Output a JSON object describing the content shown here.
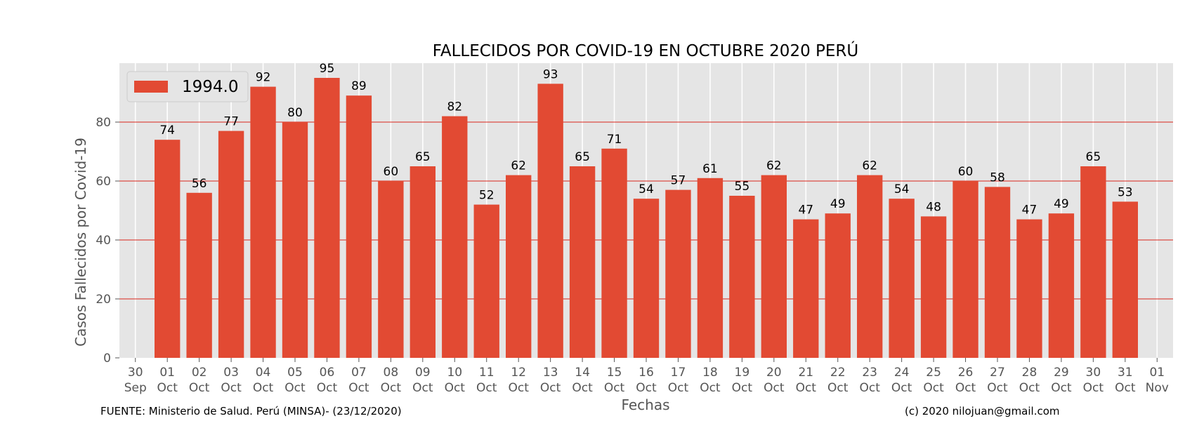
{
  "chart_data": {
    "type": "bar",
    "title": "FALLECIDOS POR COVID-19 EN OCTUBRE 2020 PERÚ",
    "xlabel": "Fechas",
    "ylabel": "Casos Fallecidos por Covid-19",
    "legend": {
      "label": "1994.0",
      "position": "top-left"
    },
    "ylim": [
      0,
      100
    ],
    "yticks": [
      0,
      20,
      40,
      60,
      80
    ],
    "grid": true,
    "bar_color": "#E24A33",
    "ticks": [
      {
        "day": "30",
        "month": "Sep"
      },
      {
        "day": "01",
        "month": "Oct"
      },
      {
        "day": "02",
        "month": "Oct"
      },
      {
        "day": "03",
        "month": "Oct"
      },
      {
        "day": "04",
        "month": "Oct"
      },
      {
        "day": "05",
        "month": "Oct"
      },
      {
        "day": "06",
        "month": "Oct"
      },
      {
        "day": "07",
        "month": "Oct"
      },
      {
        "day": "08",
        "month": "Oct"
      },
      {
        "day": "09",
        "month": "Oct"
      },
      {
        "day": "10",
        "month": "Oct"
      },
      {
        "day": "11",
        "month": "Oct"
      },
      {
        "day": "12",
        "month": "Oct"
      },
      {
        "day": "13",
        "month": "Oct"
      },
      {
        "day": "14",
        "month": "Oct"
      },
      {
        "day": "15",
        "month": "Oct"
      },
      {
        "day": "16",
        "month": "Oct"
      },
      {
        "day": "17",
        "month": "Oct"
      },
      {
        "day": "18",
        "month": "Oct"
      },
      {
        "day": "19",
        "month": "Oct"
      },
      {
        "day": "20",
        "month": "Oct"
      },
      {
        "day": "21",
        "month": "Oct"
      },
      {
        "day": "22",
        "month": "Oct"
      },
      {
        "day": "23",
        "month": "Oct"
      },
      {
        "day": "24",
        "month": "Oct"
      },
      {
        "day": "25",
        "month": "Oct"
      },
      {
        "day": "26",
        "month": "Oct"
      },
      {
        "day": "27",
        "month": "Oct"
      },
      {
        "day": "28",
        "month": "Oct"
      },
      {
        "day": "29",
        "month": "Oct"
      },
      {
        "day": "30",
        "month": "Oct"
      },
      {
        "day": "31",
        "month": "Oct"
      },
      {
        "day": "01",
        "month": "Nov"
      }
    ],
    "categories": [
      "01 Oct",
      "02 Oct",
      "03 Oct",
      "04 Oct",
      "05 Oct",
      "06 Oct",
      "07 Oct",
      "08 Oct",
      "09 Oct",
      "10 Oct",
      "11 Oct",
      "12 Oct",
      "13 Oct",
      "14 Oct",
      "15 Oct",
      "16 Oct",
      "17 Oct",
      "18 Oct",
      "19 Oct",
      "20 Oct",
      "21 Oct",
      "22 Oct",
      "23 Oct",
      "24 Oct",
      "25 Oct",
      "26 Oct",
      "27 Oct",
      "28 Oct",
      "29 Oct",
      "30 Oct",
      "31 Oct"
    ],
    "values": [
      74,
      56,
      77,
      92,
      80,
      95,
      89,
      60,
      65,
      82,
      52,
      62,
      93,
      65,
      71,
      54,
      57,
      61,
      55,
      62,
      47,
      49,
      62,
      54,
      48,
      60,
      58,
      47,
      49,
      65,
      53
    ]
  },
  "footer": {
    "source": "FUENTE: Ministerio de Salud. Perú (MINSA)- (23/12/2020)",
    "credit": "(c) 2020 nilojuan@gmail.com"
  }
}
